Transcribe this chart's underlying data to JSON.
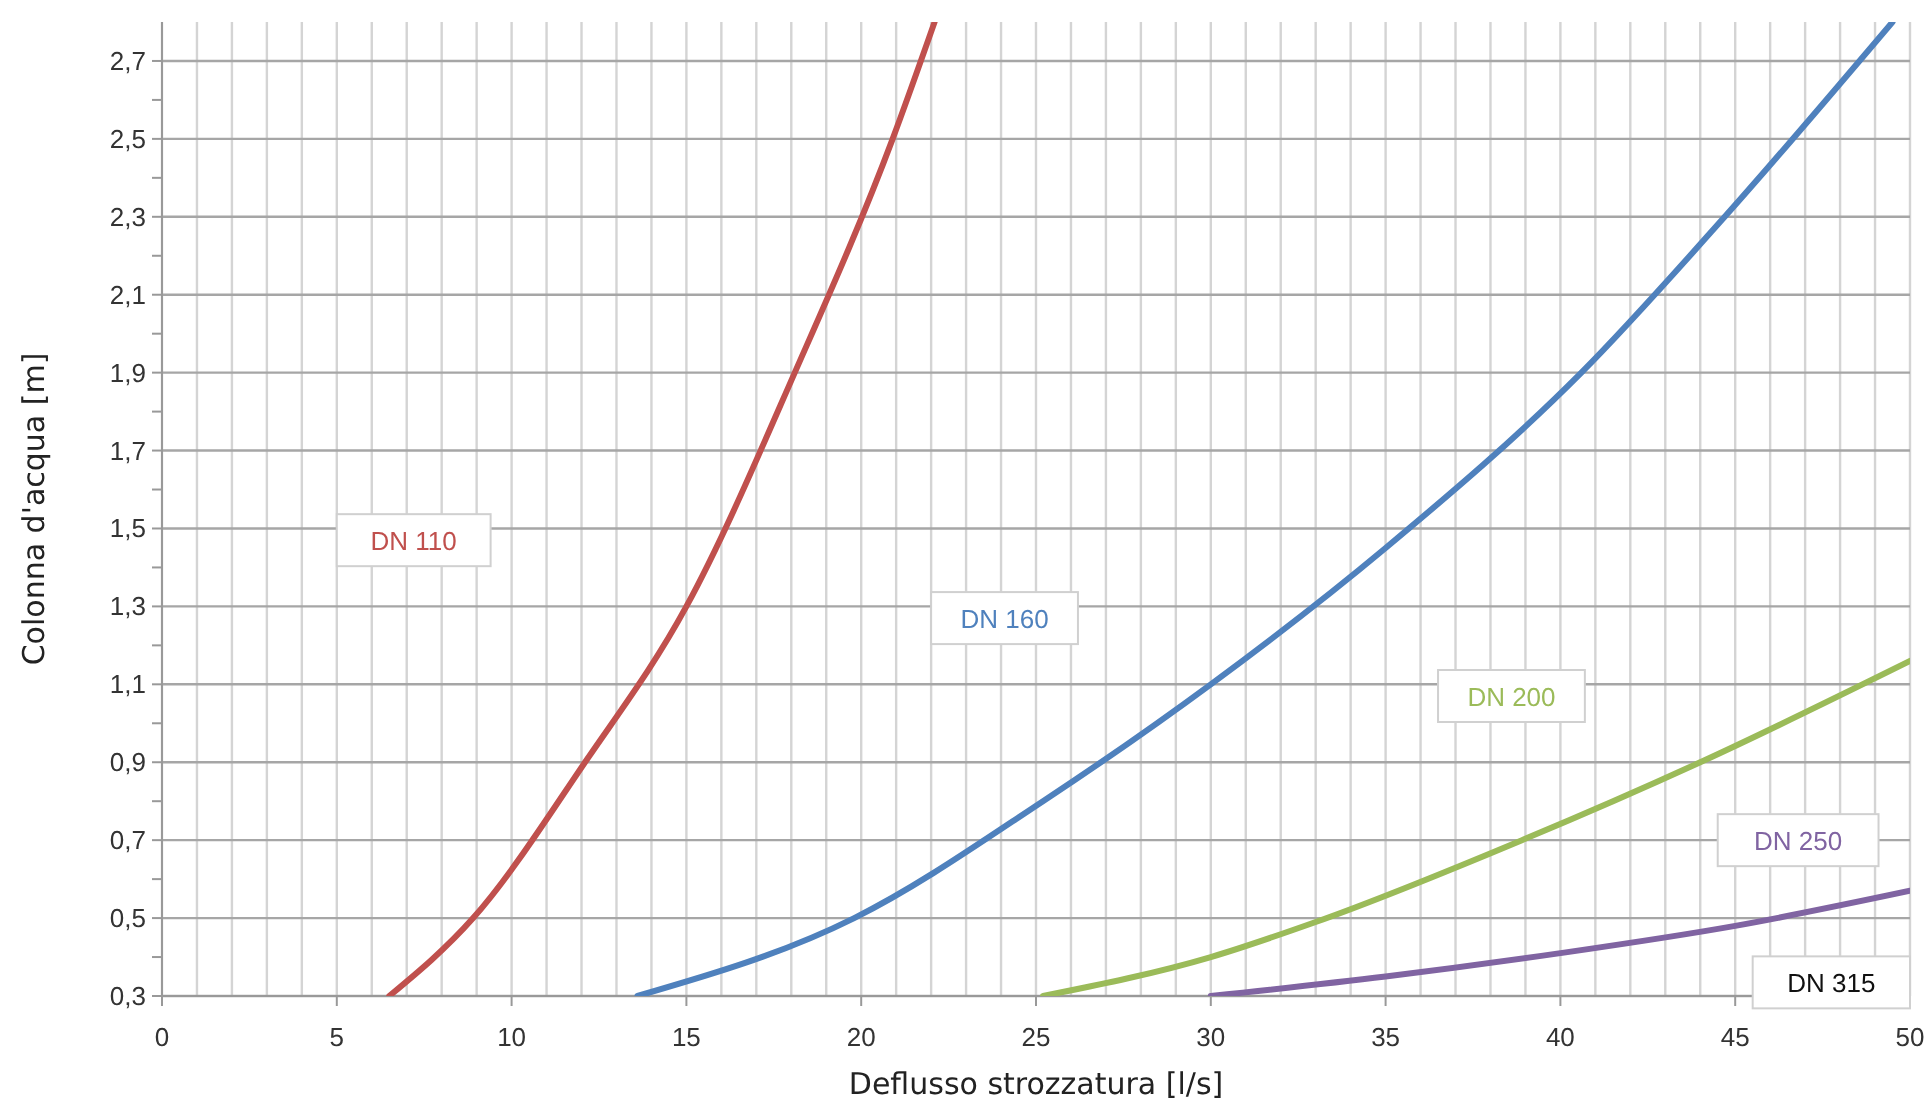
{
  "chart_data": {
    "type": "line",
    "xlabel": "Deflusso strozzatura [l/s]",
    "ylabel": "Colonna d'acqua [m]",
    "xlim": [
      0,
      50
    ],
    "ylim": [
      0.3,
      2.8
    ],
    "xticks": [
      0,
      {
        "value": 1,
        "label": null
      },
      {
        "value": 2,
        "label": null
      },
      {
        "value": 3,
        "label": null
      },
      {
        "value": 4,
        "label": null
      },
      5,
      {
        "value": 6,
        "label": null
      },
      {
        "value": 7,
        "label": null
      },
      {
        "value": 8,
        "label": null
      },
      {
        "value": 9,
        "label": null
      },
      10,
      {
        "value": 11,
        "label": null
      },
      {
        "value": 12,
        "label": null
      },
      {
        "value": 13,
        "label": null
      },
      {
        "value": 14,
        "label": null
      },
      15,
      {
        "value": 16,
        "label": null
      },
      {
        "value": 17,
        "label": null
      },
      {
        "value": 18,
        "label": null
      },
      {
        "value": 19,
        "label": null
      },
      20,
      {
        "value": 21,
        "label": null
      },
      {
        "value": 22,
        "label": null
      },
      {
        "value": 23,
        "label": null
      },
      {
        "value": 24,
        "label": null
      },
      25,
      {
        "value": 26,
        "label": null
      },
      {
        "value": 27,
        "label": null
      },
      {
        "value": 28,
        "label": null
      },
      {
        "value": 29,
        "label": null
      },
      30,
      {
        "value": 31,
        "label": null
      },
      {
        "value": 32,
        "label": null
      },
      {
        "value": 33,
        "label": null
      },
      {
        "value": 34,
        "label": null
      },
      35,
      {
        "value": 36,
        "label": null
      },
      {
        "value": 37,
        "label": null
      },
      {
        "value": 38,
        "label": null
      },
      {
        "value": 39,
        "label": null
      },
      40,
      {
        "value": 41,
        "label": null
      },
      {
        "value": 42,
        "label": null
      },
      {
        "value": 43,
        "label": null
      },
      {
        "value": 44,
        "label": null
      },
      45,
      {
        "value": 46,
        "label": null
      },
      {
        "value": 47,
        "label": null
      },
      {
        "value": 48,
        "label": null
      },
      {
        "value": 49,
        "label": null
      },
      50
    ],
    "yticks": [
      {
        "value": 0.3,
        "label": "0,3"
      },
      {
        "value": 0.4,
        "label": null
      },
      {
        "value": 0.5,
        "label": "0,5"
      },
      {
        "value": 0.6,
        "label": null
      },
      {
        "value": 0.7,
        "label": "0,7"
      },
      {
        "value": 0.8,
        "label": null
      },
      {
        "value": 0.9,
        "label": "0,9"
      },
      {
        "value": 1.0,
        "label": null
      },
      {
        "value": 1.1,
        "label": "1,1"
      },
      {
        "value": 1.2,
        "label": null
      },
      {
        "value": 1.3,
        "label": "1,3"
      },
      {
        "value": 1.4,
        "label": null
      },
      {
        "value": 1.5,
        "label": "1,5"
      },
      {
        "value": 1.6,
        "label": null
      },
      {
        "value": 1.7,
        "label": "1,7"
      },
      {
        "value": 1.8,
        "label": null
      },
      {
        "value": 1.9,
        "label": "1,9"
      },
      {
        "value": 2.0,
        "label": null
      },
      {
        "value": 2.1,
        "label": "2,1"
      },
      {
        "value": 2.2,
        "label": null
      },
      {
        "value": 2.3,
        "label": "2,3"
      },
      {
        "value": 2.4,
        "label": null
      },
      {
        "value": 2.5,
        "label": "2,5"
      },
      {
        "value": 2.6,
        "label": null
      },
      {
        "value": 2.7,
        "label": "2,7"
      }
    ],
    "grid": true,
    "marker": "none",
    "line_style": "solid",
    "series": [
      {
        "name": "DN 110",
        "color": "#c0504d",
        "x": [
          6.5,
          8.9,
          12.1,
          15.0,
          18.1,
          20.9,
          22.1
        ],
        "values": [
          0.3,
          0.5,
          0.9,
          1.3,
          1.9,
          2.5,
          2.8
        ]
      },
      {
        "name": "DN 160",
        "color": "#4f81bd",
        "x": [
          13.6,
          19.8,
          25.2,
          30.0,
          35.0,
          40.6,
          44.7,
          49.5
        ],
        "values": [
          0.3,
          0.5,
          0.8,
          1.1,
          1.45,
          1.9,
          2.3,
          2.8
        ]
      },
      {
        "name": "DN 200",
        "color": "#9bbb59",
        "x": [
          25.2,
          30.0,
          33.0,
          38.9,
          44.0,
          50.0
        ],
        "values": [
          0.3,
          0.4,
          0.49,
          0.7,
          0.9,
          1.16
        ]
      },
      {
        "name": "DN 250",
        "color": "#8064a2",
        "x": [
          30.0,
          35.0,
          40.0,
          45.0,
          50.0
        ],
        "values": [
          0.3,
          0.35,
          0.41,
          0.48,
          0.57
        ]
      }
    ],
    "annotations": [
      "DN 315"
    ]
  }
}
